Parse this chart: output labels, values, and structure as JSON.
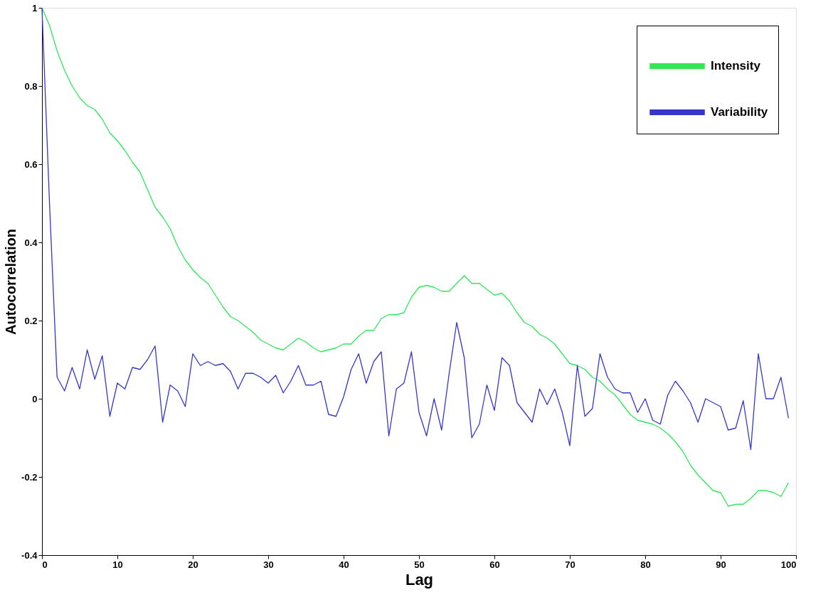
{
  "chart_data": {
    "type": "line",
    "xlabel": "Lag",
    "ylabel": "Autocorrelation",
    "x": [
      0,
      1,
      2,
      3,
      4,
      5,
      6,
      7,
      8,
      9,
      10,
      11,
      12,
      13,
      14,
      15,
      16,
      17,
      18,
      19,
      20,
      21,
      22,
      23,
      24,
      25,
      26,
      27,
      28,
      29,
      30,
      31,
      32,
      33,
      34,
      35,
      36,
      37,
      38,
      39,
      40,
      41,
      42,
      43,
      44,
      45,
      46,
      47,
      48,
      49,
      50,
      51,
      52,
      53,
      54,
      55,
      56,
      57,
      58,
      59,
      60,
      61,
      62,
      63,
      64,
      65,
      66,
      67,
      68,
      69,
      70,
      71,
      72,
      73,
      74,
      75,
      76,
      77,
      78,
      79,
      80,
      81,
      82,
      83,
      84,
      85,
      86,
      87,
      88,
      89,
      90,
      91,
      92,
      93,
      94,
      95,
      96,
      97,
      98,
      99
    ],
    "series": [
      {
        "name": "Intensity",
        "color": "#2ee85a",
        "values": [
          1.0,
          0.955,
          0.89,
          0.84,
          0.8,
          0.77,
          0.75,
          0.74,
          0.715,
          0.68,
          0.66,
          0.635,
          0.605,
          0.58,
          0.535,
          0.49,
          0.465,
          0.435,
          0.39,
          0.355,
          0.33,
          0.31,
          0.295,
          0.265,
          0.235,
          0.21,
          0.2,
          0.185,
          0.17,
          0.15,
          0.14,
          0.13,
          0.125,
          0.14,
          0.155,
          0.145,
          0.13,
          0.12,
          0.125,
          0.13,
          0.14,
          0.14,
          0.16,
          0.175,
          0.175,
          0.205,
          0.215,
          0.215,
          0.22,
          0.26,
          0.285,
          0.29,
          0.285,
          0.275,
          0.275,
          0.295,
          0.315,
          0.295,
          0.295,
          0.28,
          0.265,
          0.27,
          0.25,
          0.22,
          0.195,
          0.185,
          0.165,
          0.155,
          0.14,
          0.115,
          0.09,
          0.085,
          0.075,
          0.055,
          0.045,
          0.025,
          0.01,
          -0.015,
          -0.04,
          -0.055,
          -0.06,
          -0.065,
          -0.075,
          -0.09,
          -0.11,
          -0.135,
          -0.17,
          -0.195,
          -0.215,
          -0.235,
          -0.24,
          -0.275,
          -0.27,
          -0.27,
          -0.255,
          -0.235,
          -0.235,
          -0.24,
          -0.25,
          -0.215
        ]
      },
      {
        "name": "Variability",
        "color": "#3636c8",
        "values": [
          1.0,
          0.5,
          0.055,
          0.02,
          0.08,
          0.025,
          0.125,
          0.05,
          0.11,
          -0.045,
          0.04,
          0.025,
          0.08,
          0.075,
          0.1,
          0.135,
          -0.06,
          0.035,
          0.02,
          -0.02,
          0.115,
          0.085,
          0.095,
          0.085,
          0.09,
          0.07,
          0.025,
          0.065,
          0.065,
          0.055,
          0.04,
          0.06,
          0.015,
          0.045,
          0.085,
          0.035,
          0.035,
          0.045,
          -0.04,
          -0.045,
          0.005,
          0.075,
          0.115,
          0.04,
          0.095,
          0.12,
          -0.095,
          0.025,
          0.04,
          0.12,
          -0.035,
          -0.095,
          0.0,
          -0.08,
          0.065,
          0.195,
          0.105,
          -0.1,
          -0.065,
          0.035,
          -0.03,
          0.105,
          0.085,
          -0.01,
          -0.035,
          -0.06,
          0.025,
          -0.015,
          0.025,
          -0.035,
          -0.12,
          0.085,
          -0.045,
          -0.025,
          0.115,
          0.055,
          0.025,
          0.015,
          0.015,
          -0.035,
          0.0,
          -0.055,
          -0.065,
          0.01,
          0.045,
          0.02,
          -0.01,
          -0.06,
          0.0,
          -0.01,
          -0.02,
          -0.08,
          -0.075,
          -0.005,
          -0.13,
          0.115,
          0.0,
          0.0,
          0.055,
          -0.05
        ]
      }
    ],
    "xlim": [
      0,
      100
    ],
    "xticks": [
      0,
      10,
      20,
      30,
      40,
      50,
      60,
      70,
      80,
      90,
      100
    ],
    "ylim": [
      -0.4,
      1
    ],
    "yticks": [
      -0.4,
      -0.2,
      0,
      0.2,
      0.4,
      0.6,
      0.8,
      1
    ],
    "grid": false,
    "legend": "top right",
    "marker": "none",
    "line_style": "solid"
  }
}
